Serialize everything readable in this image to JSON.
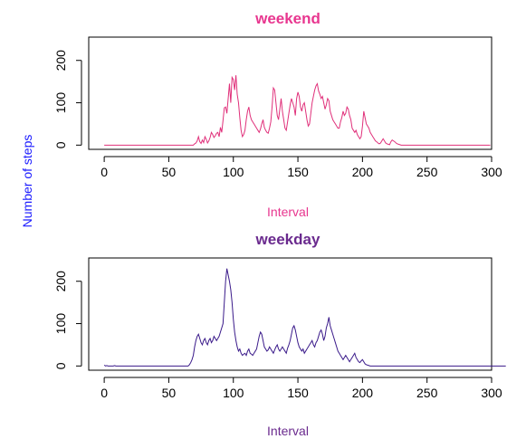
{
  "chart_data": [
    {
      "type": "line",
      "title": "weekend",
      "title_color": "#e8368f",
      "series_color": "#e0307a",
      "xlabel": "Interval",
      "xlabel_color": "#e8368f",
      "ylabel": "Number of steps",
      "ylabel_color": "#1a1aff",
      "xlim": [
        -12,
        300
      ],
      "ylim": [
        -10,
        255
      ],
      "x_ticks": [
        "0",
        "50",
        "100",
        "150",
        "200",
        "250",
        "300"
      ],
      "y_ticks": [
        "0",
        "100",
        "200"
      ],
      "grid": false,
      "x_start": 0,
      "x_step": 1,
      "series": [
        {
          "values": [
            0,
            0,
            0,
            0,
            0,
            0,
            0,
            0,
            0,
            0,
            0,
            0,
            0,
            0,
            0,
            0,
            0,
            0,
            0,
            0,
            0,
            0,
            0,
            0,
            0,
            0,
            0,
            0,
            0,
            0,
            0,
            0,
            0,
            0,
            0,
            0,
            0,
            0,
            0,
            0,
            0,
            0,
            0,
            0,
            0,
            0,
            0,
            0,
            0,
            0,
            0,
            0,
            0,
            0,
            0,
            0,
            0,
            0,
            0,
            0,
            0,
            0,
            0,
            0,
            0,
            0,
            0,
            0,
            0,
            0,
            3,
            5,
            10,
            20,
            8,
            4,
            12,
            6,
            20,
            14,
            5,
            10,
            18,
            30,
            25,
            18,
            22,
            28,
            30,
            20,
            42,
            30,
            58,
            88,
            90,
            75,
            110,
            145,
            100,
            160,
            155,
            130,
            165,
            120,
            100,
            65,
            35,
            20,
            25,
            35,
            60,
            80,
            90,
            70,
            60,
            55,
            50,
            45,
            40,
            35,
            30,
            38,
            50,
            60,
            42,
            35,
            30,
            28,
            40,
            55,
            90,
            135,
            130,
            100,
            70,
            60,
            85,
            110,
            80,
            60,
            40,
            35,
            55,
            75,
            95,
            110,
            100,
            90,
            70,
            110,
            125,
            115,
            90,
            80,
            95,
            100,
            80,
            60,
            45,
            50,
            75,
            100,
            115,
            130,
            140,
            145,
            128,
            120,
            110,
            115,
            100,
            85,
            95,
            110,
            105,
            80,
            70,
            60,
            55,
            50,
            45,
            40,
            40,
            55,
            65,
            80,
            70,
            75,
            90,
            85,
            70,
            60,
            40,
            35,
            30,
            35,
            25,
            20,
            15,
            20,
            45,
            80,
            65,
            50,
            45,
            40,
            30,
            25,
            20,
            15,
            10,
            8,
            5,
            3,
            5,
            10,
            15,
            10,
            5,
            3,
            2,
            1,
            8,
            12,
            10,
            8,
            5,
            3,
            2,
            1,
            0,
            0,
            0,
            0,
            0,
            0,
            0,
            0,
            0,
            0,
            0,
            0,
            0,
            0,
            0,
            0,
            0,
            0,
            0,
            0,
            0,
            0,
            0,
            0,
            0,
            0,
            0,
            0,
            0,
            0,
            0,
            0,
            0,
            0,
            0,
            0,
            0,
            0,
            0,
            0,
            0,
            0,
            0,
            0,
            0,
            0,
            0,
            0,
            0,
            0,
            0,
            0,
            0,
            0,
            0,
            0,
            0,
            0,
            0,
            0,
            0,
            0,
            0,
            0,
            0,
            0,
            0,
            0,
            0,
            0
          ]
        }
      ]
    },
    {
      "type": "line",
      "title": "weekday",
      "title_color": "#6a2a8e",
      "series_color": "#3a1a8a",
      "xlabel": "Interval",
      "xlabel_color": "#6a2a8e",
      "ylabel": "Number of steps",
      "ylabel_color": "#1a1aff",
      "xlim": [
        -12,
        300
      ],
      "ylim": [
        -10,
        255
      ],
      "x_ticks": [
        "0",
        "50",
        "100",
        "150",
        "200",
        "250",
        "300"
      ],
      "y_ticks": [
        "0",
        "100",
        "200"
      ],
      "grid": false,
      "x_start": 0,
      "x_step": 1,
      "series": [
        {
          "values": [
            2,
            0,
            1,
            0,
            0,
            0,
            0,
            0,
            1,
            0,
            0,
            0,
            0,
            0,
            0,
            0,
            0,
            0,
            0,
            0,
            0,
            0,
            0,
            0,
            0,
            0,
            0,
            0,
            0,
            0,
            0,
            0,
            0,
            0,
            0,
            0,
            0,
            0,
            0,
            0,
            0,
            0,
            0,
            0,
            0,
            0,
            0,
            0,
            0,
            0,
            0,
            0,
            0,
            0,
            0,
            0,
            0,
            0,
            0,
            0,
            0,
            0,
            0,
            0,
            0,
            0,
            3,
            8,
            15,
            25,
            45,
            60,
            70,
            75,
            65,
            55,
            50,
            60,
            65,
            55,
            50,
            60,
            65,
            55,
            60,
            70,
            65,
            60,
            65,
            70,
            80,
            90,
            100,
            150,
            200,
            230,
            215,
            200,
            180,
            150,
            110,
            80,
            60,
            45,
            35,
            40,
            30,
            25,
            28,
            30,
            25,
            35,
            40,
            30,
            28,
            25,
            30,
            35,
            40,
            55,
            70,
            80,
            75,
            60,
            45,
            40,
            35,
            38,
            45,
            40,
            35,
            30,
            38,
            45,
            50,
            40,
            35,
            40,
            45,
            40,
            35,
            30,
            42,
            50,
            60,
            75,
            90,
            95,
            85,
            70,
            55,
            45,
            40,
            35,
            40,
            30,
            35,
            40,
            45,
            50,
            55,
            60,
            50,
            45,
            55,
            60,
            70,
            80,
            85,
            75,
            60,
            70,
            90,
            100,
            115,
            95,
            85,
            75,
            65,
            55,
            45,
            35,
            30,
            25,
            20,
            15,
            20,
            25,
            20,
            15,
            10,
            15,
            20,
            25,
            30,
            20,
            15,
            10,
            8,
            12,
            15,
            10,
            5,
            3,
            2,
            1,
            0,
            0,
            0,
            0,
            0,
            0,
            0,
            0,
            0,
            0,
            0,
            0,
            0,
            0,
            0,
            0,
            0,
            0,
            0,
            0,
            0,
            0,
            0,
            0,
            0,
            0,
            0,
            0,
            0,
            0,
            0,
            0,
            0,
            0,
            0,
            0,
            0,
            0,
            0,
            0,
            0,
            0,
            0,
            0,
            0,
            0,
            0,
            0,
            0,
            0,
            0,
            0,
            0,
            0,
            0,
            0,
            0,
            0,
            0,
            0,
            0,
            0,
            0,
            0,
            0,
            0,
            0,
            0,
            0,
            0,
            0,
            0,
            0,
            0,
            0,
            0,
            0,
            0,
            0,
            0,
            0,
            0,
            0,
            0,
            0,
            0,
            0,
            0,
            0,
            0,
            0,
            0,
            0,
            0,
            0,
            0,
            0,
            0,
            0,
            0,
            0,
            0,
            0,
            0,
            0,
            0
          ]
        }
      ]
    }
  ]
}
